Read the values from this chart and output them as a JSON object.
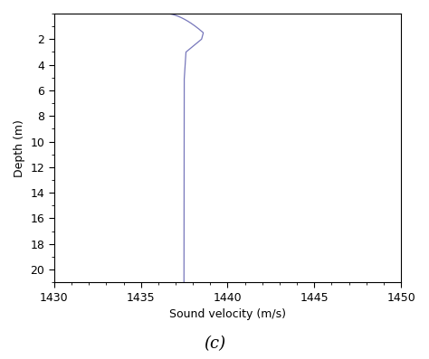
{
  "title": "(c)",
  "xlabel": "Sound velocity (m/s)",
  "ylabel": "Depth (m)",
  "xlim": [
    1430,
    1450
  ],
  "ylim": [
    21,
    0
  ],
  "xticks": [
    1430,
    1435,
    1440,
    1445,
    1450
  ],
  "yticks": [
    2,
    4,
    6,
    8,
    10,
    12,
    14,
    16,
    18,
    20
  ],
  "line_color": "#7777bb",
  "line_width": 0.9,
  "bg_color": "#ffffff",
  "title_fontsize": 13,
  "label_fontsize": 9,
  "tick_fontsize": 9
}
